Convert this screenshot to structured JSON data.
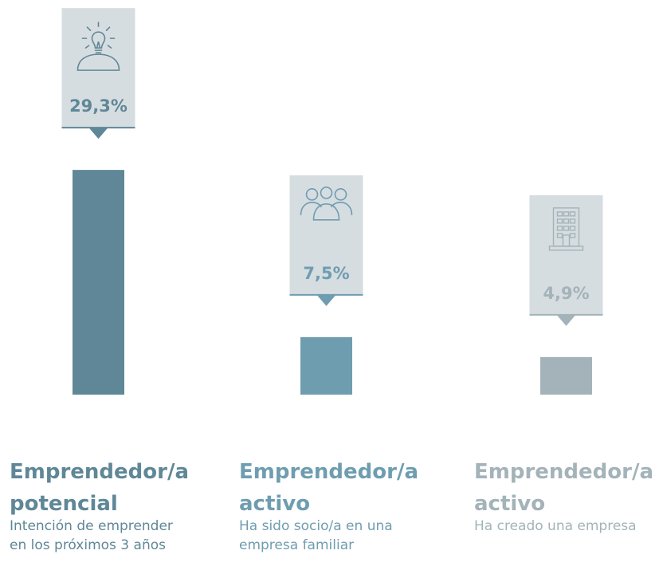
{
  "chart_data": {
    "type": "bar",
    "categories": [
      [
        "Emprendedor/a",
        "potencial"
      ],
      [
        "Emprendedor/a",
        "activo"
      ],
      [
        "Emprendedor/a",
        "activo"
      ]
    ],
    "descriptions": [
      [
        "Intención de emprender",
        "en los próximos 3 años"
      ],
      [
        "Ha sido socio/a en una",
        "empresa familiar"
      ],
      [
        "Ha creado una empresa"
      ]
    ],
    "values": [
      29.3,
      7.5,
      4.9
    ],
    "value_labels": [
      "29,3%",
      "7,5%",
      "4,9%"
    ],
    "colors": [
      "#5f8797",
      "#6f9db0",
      "#a3b3b9"
    ]
  }
}
